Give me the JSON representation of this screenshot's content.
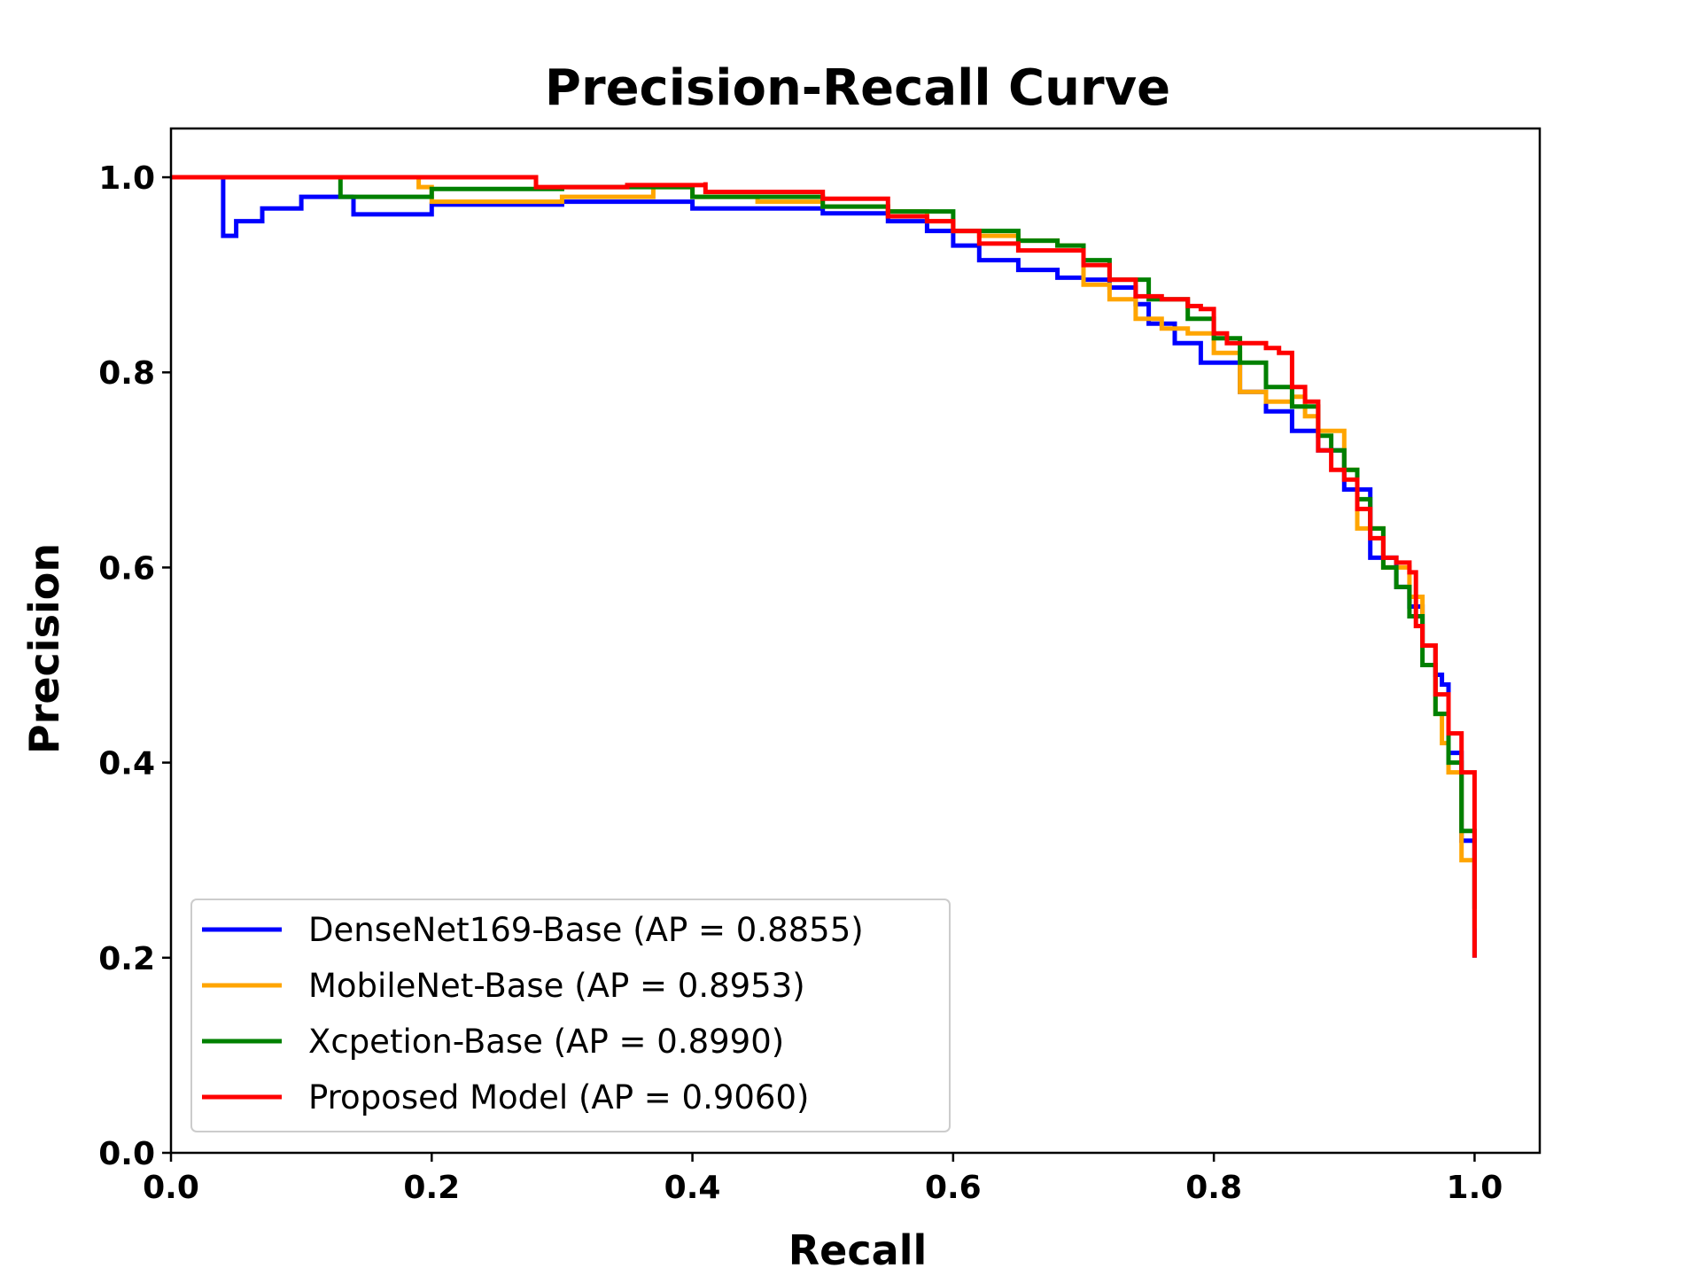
{
  "chart_data": {
    "type": "line",
    "title": "Precision-Recall Curve",
    "xlabel": "Recall",
    "ylabel": "Precision",
    "xlim": [
      0.0,
      1.05
    ],
    "ylim": [
      0.0,
      1.05
    ],
    "xticks": [
      0.0,
      0.2,
      0.4,
      0.6,
      0.8,
      1.0
    ],
    "yticks": [
      0.0,
      0.2,
      0.4,
      0.6,
      0.8,
      1.0
    ],
    "xtick_labels": [
      "0.0",
      "0.2",
      "0.4",
      "0.6",
      "0.8",
      "1.0"
    ],
    "ytick_labels": [
      "0.0",
      "0.2",
      "0.4",
      "0.6",
      "0.8",
      "1.0"
    ],
    "grid": false,
    "legend_position": "lower-left",
    "series": [
      {
        "name": "DenseNet169-Base (AP = 0.8855)",
        "color": "#0000ff",
        "x": [
          0.0,
          0.04,
          0.04,
          0.05,
          0.07,
          0.1,
          0.14,
          0.14,
          0.2,
          0.3,
          0.4,
          0.5,
          0.55,
          0.58,
          0.6,
          0.62,
          0.65,
          0.68,
          0.7,
          0.72,
          0.74,
          0.75,
          0.77,
          0.79,
          0.81,
          0.82,
          0.84,
          0.86,
          0.88,
          0.9,
          0.92,
          0.94,
          0.95,
          0.96,
          0.97,
          0.975,
          0.98,
          0.99,
          1.0
        ],
        "y": [
          1.0,
          1.0,
          0.94,
          0.955,
          0.968,
          0.98,
          0.982,
          0.962,
          0.972,
          0.975,
          0.968,
          0.963,
          0.955,
          0.945,
          0.93,
          0.915,
          0.905,
          0.897,
          0.895,
          0.887,
          0.87,
          0.85,
          0.83,
          0.81,
          0.81,
          0.78,
          0.76,
          0.74,
          0.72,
          0.68,
          0.61,
          0.58,
          0.56,
          0.52,
          0.49,
          0.48,
          0.41,
          0.32,
          0.2
        ]
      },
      {
        "name": "MobileNet-Base (AP = 0.8953)",
        "color": "#ffa500",
        "x": [
          0.0,
          0.19,
          0.19,
          0.2,
          0.3,
          0.37,
          0.4,
          0.45,
          0.5,
          0.55,
          0.58,
          0.6,
          0.62,
          0.65,
          0.68,
          0.7,
          0.72,
          0.74,
          0.76,
          0.78,
          0.8,
          0.82,
          0.84,
          0.86,
          0.87,
          0.88,
          0.9,
          0.91,
          0.93,
          0.95,
          0.96,
          0.97,
          0.975,
          0.98,
          0.99,
          1.0
        ],
        "y": [
          1.0,
          1.0,
          0.99,
          0.975,
          0.98,
          0.99,
          0.98,
          0.975,
          0.97,
          0.965,
          0.955,
          0.945,
          0.94,
          0.935,
          0.93,
          0.89,
          0.875,
          0.855,
          0.845,
          0.84,
          0.82,
          0.78,
          0.77,
          0.775,
          0.755,
          0.74,
          0.7,
          0.64,
          0.6,
          0.57,
          0.52,
          0.45,
          0.42,
          0.39,
          0.3,
          0.23
        ]
      },
      {
        "name": "Xcpetion-Base (AP = 0.8990)",
        "color": "#008000",
        "x": [
          0.0,
          0.13,
          0.13,
          0.2,
          0.3,
          0.4,
          0.5,
          0.55,
          0.6,
          0.65,
          0.67,
          0.68,
          0.7,
          0.72,
          0.75,
          0.78,
          0.8,
          0.82,
          0.84,
          0.86,
          0.88,
          0.89,
          0.9,
          0.91,
          0.92,
          0.93,
          0.94,
          0.95,
          0.96,
          0.97,
          0.98,
          0.99,
          1.0
        ],
        "y": [
          1.0,
          1.0,
          0.98,
          0.988,
          0.99,
          0.98,
          0.97,
          0.965,
          0.945,
          0.935,
          0.935,
          0.93,
          0.915,
          0.895,
          0.875,
          0.855,
          0.835,
          0.81,
          0.785,
          0.765,
          0.735,
          0.72,
          0.7,
          0.67,
          0.64,
          0.6,
          0.58,
          0.55,
          0.5,
          0.45,
          0.4,
          0.33,
          0.25
        ]
      },
      {
        "name": "Proposed Model (AP = 0.9060)",
        "color": "#ff0000",
        "x": [
          0.0,
          0.28,
          0.28,
          0.35,
          0.41,
          0.41,
          0.5,
          0.55,
          0.58,
          0.6,
          0.62,
          0.65,
          0.7,
          0.72,
          0.74,
          0.76,
          0.78,
          0.79,
          0.8,
          0.81,
          0.82,
          0.84,
          0.85,
          0.86,
          0.86,
          0.87,
          0.88,
          0.89,
          0.9,
          0.91,
          0.92,
          0.93,
          0.94,
          0.95,
          0.955,
          0.96,
          0.97,
          0.98,
          0.99,
          1.0,
          1.0
        ],
        "y": [
          1.0,
          1.0,
          0.99,
          0.992,
          0.995,
          0.985,
          0.978,
          0.96,
          0.955,
          0.945,
          0.932,
          0.925,
          0.91,
          0.895,
          0.878,
          0.875,
          0.868,
          0.865,
          0.84,
          0.83,
          0.83,
          0.825,
          0.82,
          0.815,
          0.785,
          0.77,
          0.72,
          0.7,
          0.69,
          0.66,
          0.63,
          0.61,
          0.605,
          0.595,
          0.54,
          0.52,
          0.47,
          0.43,
          0.39,
          0.35,
          0.2
        ]
      }
    ]
  }
}
